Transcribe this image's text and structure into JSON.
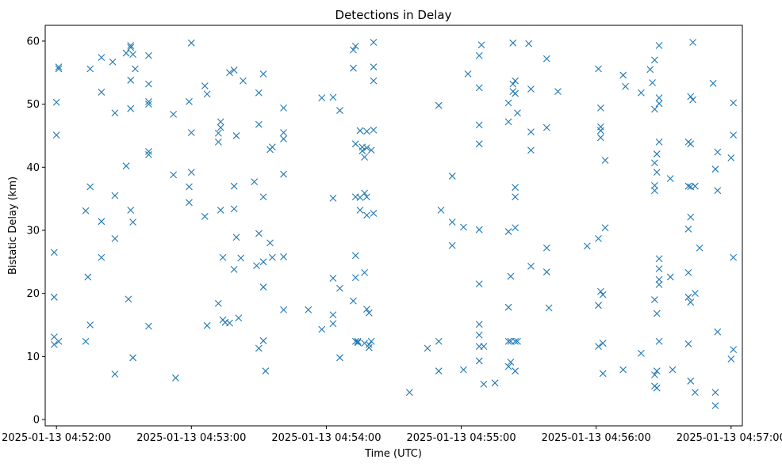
{
  "chart_data": {
    "type": "scatter",
    "title": "Detections in Delay",
    "xlabel": "Time (UTC)",
    "ylabel": "Bistatic Delay (km)",
    "marker": "x",
    "color": "#1f77b4",
    "grid": false,
    "xlim_seconds": [
      -5,
      305
    ],
    "ylim": [
      -1,
      62.5
    ],
    "x_ticks": [
      {
        "value": 0,
        "label": "2025-01-13 04:52:00"
      },
      {
        "value": 60,
        "label": "2025-01-13 04:53:00"
      },
      {
        "value": 120,
        "label": "2025-01-13 04:54:00"
      },
      {
        "value": 180,
        "label": "2025-01-13 04:55:00"
      },
      {
        "value": 240,
        "label": "2025-01-13 04:56:00"
      },
      {
        "value": 300,
        "label": "2025-01-13 04:57:00"
      }
    ],
    "y_ticks": [
      0,
      10,
      20,
      30,
      40,
      50,
      60
    ],
    "x_units": "seconds after 2025-01-13 04:52:00",
    "points": [
      [
        -1,
        26.5
      ],
      [
        -1,
        19.4
      ],
      [
        -1,
        13.1
      ],
      [
        -1,
        11.9
      ],
      [
        0,
        50.3
      ],
      [
        0,
        45.1
      ],
      [
        1,
        55.9
      ],
      [
        1,
        55.6
      ],
      [
        1,
        12.4
      ],
      [
        13,
        33.1
      ],
      [
        13,
        12.4
      ],
      [
        14,
        22.6
      ],
      [
        15,
        15.0
      ],
      [
        15,
        36.9
      ],
      [
        15,
        55.6
      ],
      [
        20,
        57.4
      ],
      [
        20,
        51.9
      ],
      [
        20,
        31.4
      ],
      [
        20,
        25.7
      ],
      [
        25,
        56.7
      ],
      [
        26,
        48.6
      ],
      [
        26,
        35.5
      ],
      [
        26,
        28.7
      ],
      [
        26,
        7.2
      ],
      [
        31,
        58.1
      ],
      [
        31,
        40.2
      ],
      [
        32,
        19.1
      ],
      [
        33,
        59.3
      ],
      [
        33,
        59.0
      ],
      [
        33,
        53.8
      ],
      [
        33,
        49.3
      ],
      [
        33,
        33.2
      ],
      [
        34,
        31.3
      ],
      [
        34,
        9.8
      ],
      [
        34,
        57.9
      ],
      [
        35,
        55.6
      ],
      [
        41,
        57.7
      ],
      [
        41,
        53.2
      ],
      [
        41,
        50.4
      ],
      [
        41,
        50.0
      ],
      [
        41,
        42.5
      ],
      [
        41,
        42.0
      ],
      [
        41,
        14.8
      ],
      [
        52,
        48.4
      ],
      [
        52,
        38.8
      ],
      [
        53,
        6.6
      ],
      [
        59,
        50.4
      ],
      [
        59,
        36.9
      ],
      [
        59,
        34.4
      ],
      [
        60,
        59.7
      ],
      [
        60,
        45.5
      ],
      [
        60,
        39.2
      ],
      [
        66,
        52.9
      ],
      [
        67,
        51.6
      ],
      [
        66,
        32.2
      ],
      [
        67,
        14.9
      ],
      [
        72,
        45.4
      ],
      [
        72,
        44.0
      ],
      [
        73,
        47.2
      ],
      [
        73,
        46.3
      ],
      [
        72,
        18.4
      ],
      [
        73,
        33.2
      ],
      [
        74,
        25.7
      ],
      [
        74,
        15.8
      ],
      [
        75,
        15.4
      ],
      [
        77,
        55.0
      ],
      [
        77,
        15.3
      ],
      [
        79,
        55.4
      ],
      [
        79,
        37.0
      ],
      [
        79,
        33.4
      ],
      [
        79,
        23.8
      ],
      [
        80,
        45.0
      ],
      [
        80,
        28.9
      ],
      [
        81,
        16.1
      ],
      [
        82,
        25.6
      ],
      [
        83,
        53.7
      ],
      [
        88,
        37.7
      ],
      [
        89,
        24.4
      ],
      [
        90,
        51.8
      ],
      [
        90,
        46.8
      ],
      [
        90,
        29.5
      ],
      [
        90,
        11.3
      ],
      [
        92,
        54.8
      ],
      [
        92,
        35.3
      ],
      [
        92,
        25.0
      ],
      [
        92,
        21.0
      ],
      [
        92,
        12.5
      ],
      [
        93,
        7.7
      ],
      [
        95,
        42.8
      ],
      [
        95,
        28.0
      ],
      [
        96,
        43.2
      ],
      [
        96,
        25.7
      ],
      [
        101,
        49.4
      ],
      [
        101,
        45.5
      ],
      [
        101,
        44.5
      ],
      [
        101,
        38.9
      ],
      [
        101,
        25.8
      ],
      [
        101,
        17.4
      ],
      [
        112,
        17.4
      ],
      [
        118,
        51.0
      ],
      [
        118,
        14.3
      ],
      [
        123,
        51.1
      ],
      [
        123,
        35.1
      ],
      [
        123,
        22.4
      ],
      [
        123,
        16.6
      ],
      [
        123,
        15.2
      ],
      [
        126,
        49.0
      ],
      [
        126,
        20.8
      ],
      [
        126,
        9.8
      ],
      [
        132,
        58.6
      ],
      [
        132,
        55.7
      ],
      [
        132,
        18.8
      ],
      [
        133,
        59.2
      ],
      [
        133,
        43.7
      ],
      [
        133,
        35.3
      ],
      [
        133,
        26.0
      ],
      [
        133,
        22.5
      ],
      [
        133,
        12.4
      ],
      [
        134,
        12.2
      ],
      [
        134,
        12.4
      ],
      [
        135,
        45.8
      ],
      [
        135,
        35.2
      ],
      [
        135,
        33.2
      ],
      [
        136,
        43.2
      ],
      [
        136,
        42.6
      ],
      [
        137,
        35.9
      ],
      [
        137,
        41.6
      ],
      [
        137,
        23.3
      ],
      [
        137,
        12.1
      ],
      [
        138,
        17.5
      ],
      [
        138,
        32.4
      ],
      [
        138,
        43.1
      ],
      [
        138,
        45.7
      ],
      [
        138,
        35.3
      ],
      [
        139,
        16.9
      ],
      [
        139,
        11.9
      ],
      [
        139,
        11.4
      ],
      [
        140,
        12.4
      ],
      [
        140,
        42.7
      ],
      [
        141,
        59.8
      ],
      [
        141,
        55.9
      ],
      [
        141,
        53.7
      ],
      [
        141,
        45.9
      ],
      [
        141,
        32.7
      ],
      [
        157,
        4.3
      ],
      [
        165,
        11.3
      ],
      [
        170,
        49.8
      ],
      [
        170,
        12.4
      ],
      [
        170,
        7.7
      ],
      [
        171,
        33.2
      ],
      [
        176,
        38.6
      ],
      [
        176,
        31.3
      ],
      [
        176,
        27.6
      ],
      [
        181,
        30.5
      ],
      [
        181,
        7.9
      ],
      [
        183,
        54.8
      ],
      [
        188,
        57.7
      ],
      [
        188,
        52.6
      ],
      [
        188,
        46.7
      ],
      [
        188,
        43.7
      ],
      [
        188,
        30.1
      ],
      [
        188,
        21.5
      ],
      [
        188,
        15.1
      ],
      [
        188,
        13.4
      ],
      [
        188,
        11.6
      ],
      [
        188,
        9.3
      ],
      [
        189,
        59.4
      ],
      [
        190,
        11.6
      ],
      [
        190,
        5.6
      ],
      [
        195,
        5.8
      ],
      [
        201,
        50.2
      ],
      [
        201,
        47.2
      ],
      [
        201,
        29.8
      ],
      [
        201,
        17.8
      ],
      [
        201,
        12.4
      ],
      [
        201,
        8.4
      ],
      [
        202,
        9.1
      ],
      [
        202,
        12.4
      ],
      [
        202,
        22.7
      ],
      [
        203,
        59.7
      ],
      [
        203,
        53.2
      ],
      [
        203,
        52.0
      ],
      [
        204,
        53.7
      ],
      [
        204,
        51.7
      ],
      [
        204,
        36.8
      ],
      [
        204,
        35.3
      ],
      [
        204,
        30.4
      ],
      [
        204,
        12.4
      ],
      [
        204,
        7.7
      ],
      [
        205,
        48.6
      ],
      [
        205,
        12.4
      ],
      [
        210,
        59.6
      ],
      [
        211,
        52.4
      ],
      [
        211,
        45.6
      ],
      [
        211,
        42.7
      ],
      [
        211,
        24.3
      ],
      [
        218,
        57.2
      ],
      [
        218,
        46.3
      ],
      [
        218,
        27.2
      ],
      [
        218,
        23.4
      ],
      [
        219,
        17.7
      ],
      [
        223,
        52.0
      ],
      [
        236,
        27.5
      ],
      [
        241,
        55.6
      ],
      [
        241,
        28.7
      ],
      [
        241,
        18.1
      ],
      [
        241,
        11.6
      ],
      [
        242,
        49.4
      ],
      [
        242,
        46.4
      ],
      [
        242,
        45.8
      ],
      [
        242,
        44.7
      ],
      [
        242,
        20.3
      ],
      [
        243,
        12.1
      ],
      [
        243,
        7.3
      ],
      [
        243,
        19.8
      ],
      [
        244,
        41.1
      ],
      [
        244,
        30.4
      ],
      [
        252,
        54.6
      ],
      [
        253,
        52.8
      ],
      [
        252,
        7.9
      ],
      [
        260,
        51.8
      ],
      [
        260,
        10.5
      ],
      [
        264,
        55.5
      ],
      [
        265,
        53.4
      ],
      [
        266,
        57.0
      ],
      [
        266,
        49.2
      ],
      [
        266,
        40.7
      ],
      [
        266,
        37.1
      ],
      [
        266,
        36.3
      ],
      [
        266,
        19.0
      ],
      [
        266,
        7.1
      ],
      [
        266,
        5.3
      ],
      [
        267,
        7.7
      ],
      [
        267,
        5.0
      ],
      [
        267,
        42.1
      ],
      [
        267,
        39.2
      ],
      [
        267,
        16.8
      ],
      [
        268,
        59.3
      ],
      [
        268,
        51.0
      ],
      [
        268,
        50.1
      ],
      [
        268,
        44.0
      ],
      [
        268,
        25.5
      ],
      [
        268,
        23.9
      ],
      [
        268,
        22.2
      ],
      [
        268,
        21.4
      ],
      [
        268,
        12.4
      ],
      [
        273,
        38.2
      ],
      [
        273,
        22.6
      ],
      [
        274,
        7.9
      ],
      [
        281,
        37.0
      ],
      [
        281,
        30.2
      ],
      [
        281,
        23.3
      ],
      [
        281,
        19.4
      ],
      [
        281,
        12.0
      ],
      [
        281,
        44.0
      ],
      [
        282,
        51.2
      ],
      [
        282,
        36.9
      ],
      [
        282,
        32.1
      ],
      [
        282,
        18.6
      ],
      [
        282,
        6.1
      ],
      [
        282,
        43.7
      ],
      [
        283,
        59.8
      ],
      [
        283,
        50.7
      ],
      [
        284,
        37.0
      ],
      [
        284,
        20.0
      ],
      [
        284,
        4.3
      ],
      [
        286,
        27.2
      ],
      [
        292,
        53.3
      ],
      [
        293,
        39.7
      ],
      [
        293,
        2.2
      ],
      [
        293,
        4.3
      ],
      [
        294,
        42.4
      ],
      [
        294,
        36.3
      ],
      [
        294,
        13.9
      ],
      [
        300,
        41.5
      ],
      [
        300,
        9.6
      ],
      [
        301,
        50.2
      ],
      [
        301,
        45.1
      ],
      [
        301,
        25.7
      ],
      [
        301,
        11.1
      ]
    ]
  }
}
